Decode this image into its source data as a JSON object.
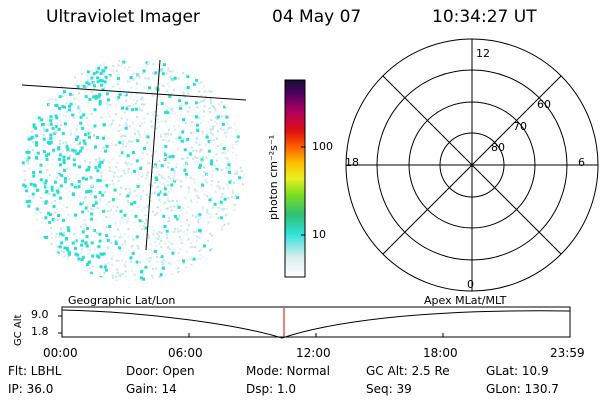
{
  "header": {
    "instrument": "Ultraviolet Imager",
    "date": "04 May 07",
    "time": "10:34:27 UT"
  },
  "colorbar": {
    "unit_label": "photon cm⁻²s⁻¹",
    "ticks": [
      "100",
      "10"
    ]
  },
  "polar_plot": {
    "mlt_labels": [
      "12",
      "18",
      "6",
      "0"
    ],
    "lat_labels": [
      "60",
      "70",
      "80"
    ]
  },
  "timeline": {
    "y_axis_label": "GC Alt",
    "y_ticks": [
      "9.0",
      "1.8"
    ],
    "left_title": "Geographic Lat/Lon",
    "right_title": "Apex MLat/MLT",
    "x_ticks": [
      "00:00",
      "06:00",
      "12:00",
      "18:00",
      "23:59"
    ],
    "marker_color": "#e00000"
  },
  "footer": {
    "flt": "Flt: LBHL",
    "door": "Door: Open",
    "mode": "Mode: Normal",
    "gc_alt": "GC Alt: 2.5 Re",
    "glat": "GLat:  10.9",
    "ip": "IP: 36.0",
    "gain": "Gain: 14",
    "dsp": "Dsp:     1.0",
    "seq": "Seq: 39",
    "glon": "GLon: 130.7"
  }
}
